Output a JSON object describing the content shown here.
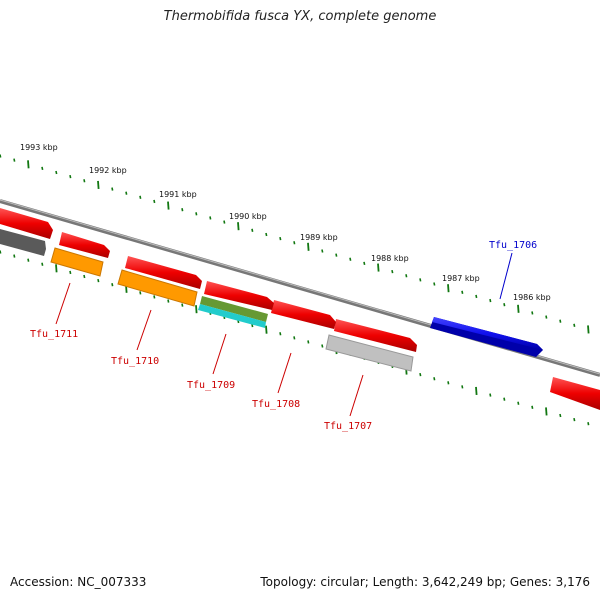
{
  "title": "Thermobifida fusca YX, complete genome",
  "footer": {
    "accession": "Accession: NC_007333",
    "summary": "Topology: circular; Length: 3,642,249 bp; Genes: 3,176"
  },
  "colors": {
    "forward_strand": "#ee0000",
    "blue_gene": "#1111ee",
    "gray_gene": "#c0c0c0",
    "dark_gene": "#666666",
    "orange_gene": "#ff9900",
    "olive_gene": "#669933",
    "cyan_gene": "#22cccc",
    "backbone": "#888888",
    "tick": "#117711",
    "label_red": "#cc0000",
    "label_blue": "#0000cc"
  },
  "ticks": {
    "labels": [
      "1993 kbp",
      "1992 kbp",
      "1991 kbp",
      "1990 kbp",
      "1989 kbp",
      "1988 kbp",
      "1987 kbp",
      "1986 kbp"
    ]
  },
  "genes": [
    {
      "name": "Tfu_1711",
      "color": "label_red"
    },
    {
      "name": "Tfu_1710",
      "color": "label_red"
    },
    {
      "name": "Tfu_1709",
      "color": "label_red"
    },
    {
      "name": "Tfu_1708",
      "color": "label_red"
    },
    {
      "name": "Tfu_1707",
      "color": "label_red"
    },
    {
      "name": "Tfu_1706",
      "color": "label_blue"
    }
  ]
}
